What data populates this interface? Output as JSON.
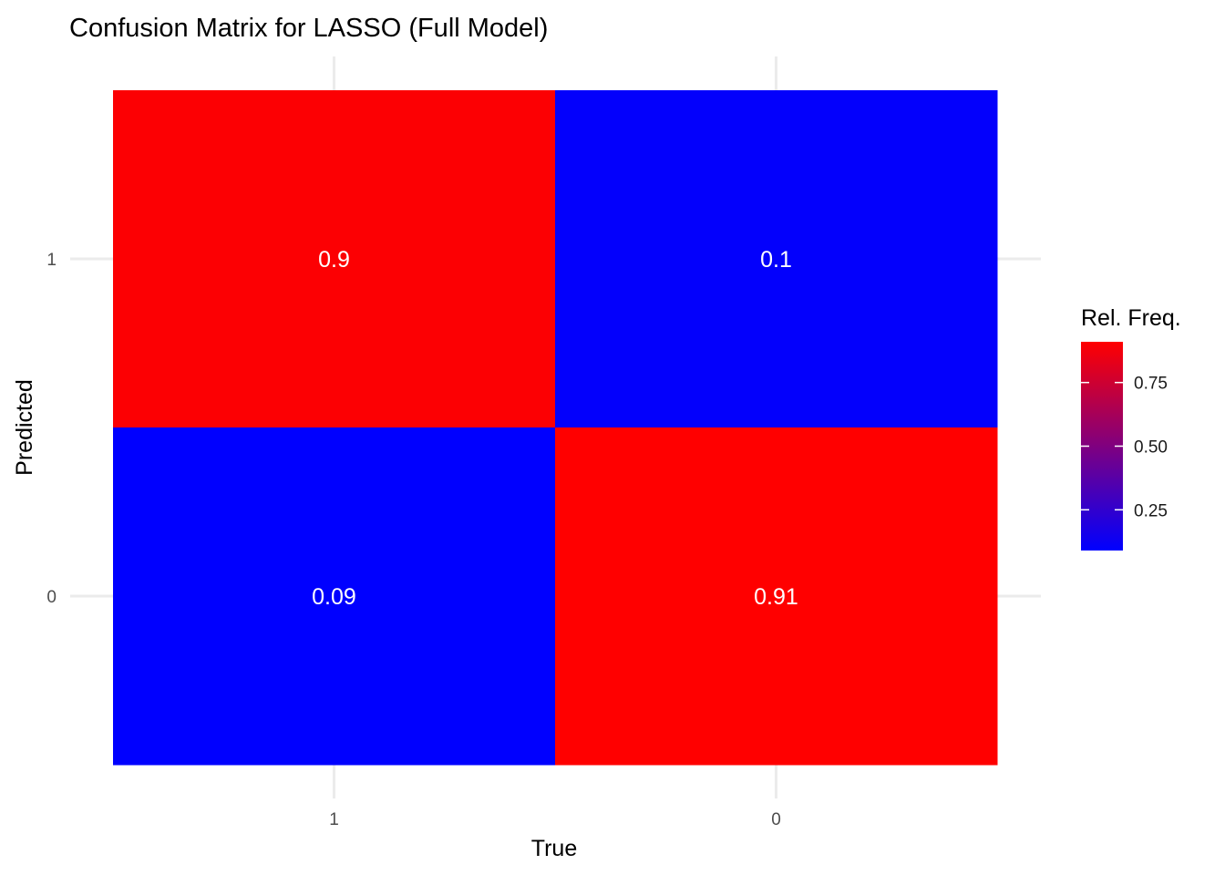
{
  "chart_data": {
    "type": "heatmap",
    "title": "Confusion Matrix for LASSO (Full Model)",
    "xlabel": "True",
    "ylabel": "Predicted",
    "x_categories": [
      "1",
      "0"
    ],
    "y_categories": [
      "1",
      "0"
    ],
    "cells": [
      {
        "true": "1",
        "predicted": "1",
        "value": 0.9,
        "label": "0.9"
      },
      {
        "true": "0",
        "predicted": "1",
        "value": 0.1,
        "label": "0.1"
      },
      {
        "true": "1",
        "predicted": "0",
        "value": 0.09,
        "label": "0.09"
      },
      {
        "true": "0",
        "predicted": "0",
        "value": 0.91,
        "label": "0.91"
      }
    ],
    "color_scale": {
      "low": "#0000ff",
      "high": "#ff0000",
      "limits": [
        0.09,
        0.91
      ]
    },
    "legend": {
      "title": "Rel. Freq.",
      "position": "right",
      "breaks": [
        0.25,
        0.5,
        0.75
      ],
      "break_labels": [
        "0.25",
        "0.50",
        "0.75"
      ]
    },
    "grid": true
  }
}
